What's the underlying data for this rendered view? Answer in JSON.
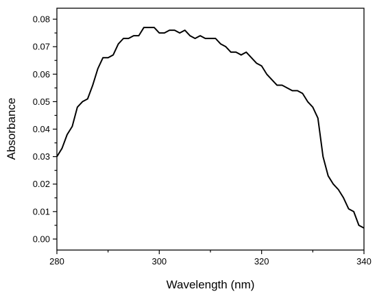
{
  "chart_data": {
    "type": "line",
    "title": "",
    "xlabel": "Wavelength (nm)",
    "ylabel": "Absorbance",
    "xlim": [
      280,
      340
    ],
    "ylim": [
      -0.004,
      0.084
    ],
    "grid": false,
    "legend": "none",
    "x_ticks": [
      280,
      300,
      320,
      340
    ],
    "x_tick_labels": [
      "280",
      "300",
      "320",
      "340"
    ],
    "y_ticks": [
      0.0,
      0.01,
      0.02,
      0.03,
      0.04,
      0.05,
      0.06,
      0.07,
      0.08
    ],
    "y_tick_labels": [
      "0.00",
      "0.01",
      "0.02",
      "0.03",
      "0.04",
      "0.05",
      "0.06",
      "0.07",
      "0.08"
    ],
    "line_color": "#000000",
    "series": [
      {
        "x": [
          280,
          281,
          282,
          283,
          284,
          285,
          286,
          287,
          288,
          289,
          290,
          291,
          292,
          293,
          294,
          295,
          296,
          297,
          298,
          299,
          300,
          301,
          302,
          303,
          304,
          305,
          306,
          307,
          308,
          309,
          310,
          311,
          312,
          313,
          314,
          315,
          316,
          317,
          318,
          319,
          320,
          321,
          322,
          323,
          324,
          325,
          326,
          327,
          328,
          329,
          330,
          331,
          332,
          333,
          334,
          335,
          336,
          337,
          338,
          339,
          340
        ],
        "y": [
          0.03,
          0.033,
          0.038,
          0.041,
          0.048,
          0.05,
          0.051,
          0.056,
          0.062,
          0.066,
          0.066,
          0.067,
          0.071,
          0.073,
          0.073,
          0.074,
          0.074,
          0.077,
          0.077,
          0.077,
          0.075,
          0.075,
          0.076,
          0.076,
          0.075,
          0.076,
          0.074,
          0.073,
          0.074,
          0.073,
          0.073,
          0.073,
          0.071,
          0.07,
          0.068,
          0.068,
          0.067,
          0.068,
          0.066,
          0.064,
          0.063,
          0.06,
          0.058,
          0.056,
          0.056,
          0.055,
          0.054,
          0.054,
          0.053,
          0.05,
          0.048,
          0.044,
          0.03,
          0.023,
          0.02,
          0.018,
          0.015,
          0.011,
          0.01,
          0.005,
          0.004
        ]
      }
    ]
  }
}
